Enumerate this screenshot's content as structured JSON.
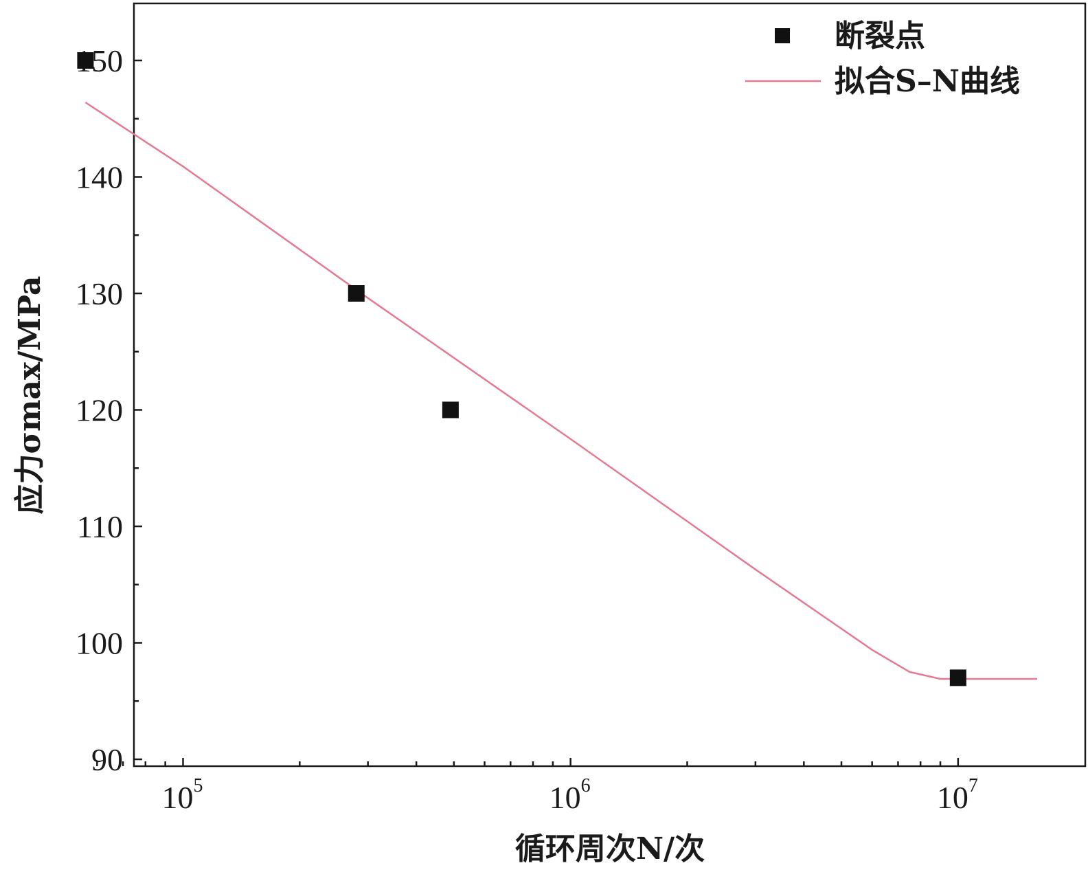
{
  "chart_data": {
    "type": "scatter",
    "x_scale": "log",
    "xlim": [
      55000,
      16000000
    ],
    "ylim": [
      90,
      155
    ],
    "xlabel": "循环周次N/次",
    "ylabel": "应力σmax/MPa",
    "xticks": [
      {
        "value": 100000,
        "base": "10",
        "exp": "5"
      },
      {
        "value": 1000000,
        "base": "10",
        "exp": "6"
      },
      {
        "value": 10000000,
        "base": "10",
        "exp": "7"
      }
    ],
    "yticks": [
      "90",
      "100",
      "110",
      "120",
      "130",
      "140",
      "150"
    ],
    "legend_position": "top-right",
    "series": [
      {
        "name": "断裂点",
        "kind": "scatter",
        "color": "#111111",
        "marker": "square",
        "points": [
          {
            "x": 56000,
            "y": 150
          },
          {
            "x": 280000,
            "y": 130
          },
          {
            "x": 490000,
            "y": 120
          },
          {
            "x": 10000000,
            "y": 97
          }
        ]
      },
      {
        "name": "拟合S–N曲线",
        "kind": "line",
        "color": "#e57a92",
        "points": [
          {
            "x": 56000,
            "y": 146.4
          },
          {
            "x": 100000,
            "y": 140.9
          },
          {
            "x": 300000,
            "y": 129.6
          },
          {
            "x": 1000000,
            "y": 117.5
          },
          {
            "x": 3000000,
            "y": 106.3
          },
          {
            "x": 6000000,
            "y": 99.4
          },
          {
            "x": 7500000,
            "y": 97.5
          },
          {
            "x": 9000000,
            "y": 96.9
          },
          {
            "x": 16000000,
            "y": 96.9
          }
        ]
      }
    ]
  }
}
